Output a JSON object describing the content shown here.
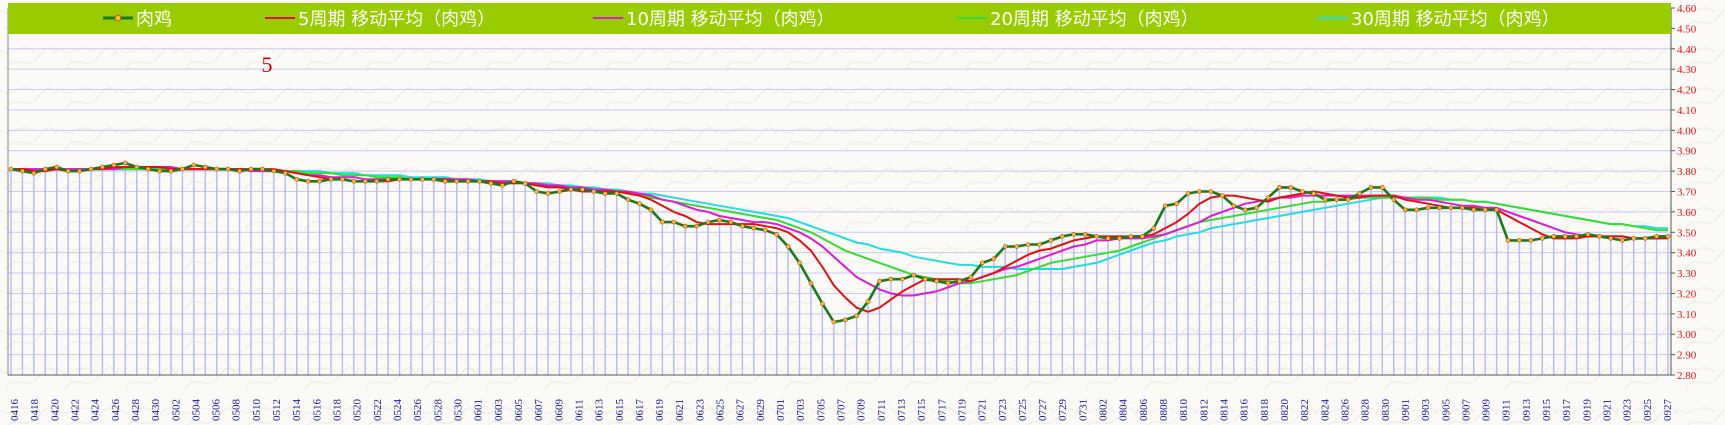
{
  "chart_data": {
    "type": "line",
    "title": "",
    "xlabel": "",
    "ylabel": "",
    "annotation": "5",
    "ylim": [
      2.8,
      4.6
    ],
    "yticks": [
      "2.80",
      "2.90",
      "3.00",
      "3.10",
      "3.20",
      "3.30",
      "3.40",
      "3.50",
      "3.60",
      "3.70",
      "3.80",
      "3.90",
      "4.00",
      "4.10",
      "4.20",
      "4.30",
      "4.40",
      "4.50",
      "4.60"
    ],
    "x_labels": [
      "0416",
      "0418",
      "0420",
      "0422",
      "0424",
      "0426",
      "0428",
      "0430",
      "0502",
      "0504",
      "0506",
      "0508",
      "0510",
      "0512",
      "0514",
      "0516",
      "0518",
      "0520",
      "0522",
      "0524",
      "0526",
      "0528",
      "0530",
      "0601",
      "0603",
      "0605",
      "0607",
      "0609",
      "0611",
      "0613",
      "0615",
      "0617",
      "0619",
      "0621",
      "0623",
      "0625",
      "0627",
      "0629",
      "0701",
      "0703",
      "0705",
      "0707",
      "0709",
      "0711",
      "0713",
      "0715",
      "0717",
      "0719",
      "0721",
      "0723",
      "0725",
      "0727",
      "0729",
      "0731",
      "0802",
      "0804",
      "0806",
      "0808",
      "0810",
      "0812",
      "0814",
      "0816",
      "0818",
      "0820",
      "0822",
      "0824",
      "0826",
      "0828",
      "0830",
      "0901",
      "0903",
      "0905",
      "0907",
      "0909",
      "0911",
      "0913",
      "0915",
      "0917",
      "0919",
      "0921",
      "0923",
      "0925",
      "0927"
    ],
    "grid": true,
    "legend_position": "top",
    "series": [
      {
        "name": "肉鸡",
        "color": "#1a7a1a",
        "marker": true,
        "values": [
          3.81,
          3.8,
          3.79,
          3.81,
          3.82,
          3.8,
          3.8,
          3.81,
          3.82,
          3.83,
          3.84,
          3.82,
          3.81,
          3.8,
          3.8,
          3.81,
          3.83,
          3.82,
          3.81,
          3.81,
          3.8,
          3.81,
          3.81,
          3.8,
          3.79,
          3.76,
          3.75,
          3.75,
          3.76,
          3.76,
          3.75,
          3.75,
          3.75,
          3.76,
          3.76,
          3.76,
          3.76,
          3.76,
          3.75,
          3.75,
          3.75,
          3.75,
          3.74,
          3.73,
          3.75,
          3.74,
          3.7,
          3.69,
          3.7,
          3.71,
          3.71,
          3.7,
          3.69,
          3.69,
          3.66,
          3.64,
          3.61,
          3.55,
          3.55,
          3.53,
          3.53,
          3.55,
          3.56,
          3.55,
          3.53,
          3.52,
          3.51,
          3.49,
          3.43,
          3.35,
          3.25,
          3.15,
          3.06,
          3.07,
          3.09,
          3.16,
          3.26,
          3.27,
          3.27,
          3.29,
          3.27,
          3.26,
          3.25,
          3.26,
          3.28,
          3.35,
          3.37,
          3.43,
          3.43,
          3.44,
          3.44,
          3.46,
          3.48,
          3.49,
          3.49,
          3.48,
          3.47,
          3.47,
          3.48,
          3.48,
          3.52,
          3.63,
          3.64,
          3.69,
          3.7,
          3.7,
          3.68,
          3.63,
          3.61,
          3.62,
          3.67,
          3.72,
          3.72,
          3.7,
          3.69,
          3.66,
          3.66,
          3.66,
          3.69,
          3.72,
          3.72,
          3.66,
          3.61,
          3.61,
          3.62,
          3.62,
          3.62,
          3.62,
          3.61,
          3.61,
          3.61,
          3.46,
          3.46,
          3.46,
          3.47,
          3.48,
          3.48,
          3.48,
          3.49,
          3.48,
          3.47,
          3.46,
          3.47,
          3.47,
          3.48,
          3.48
        ]
      },
      {
        "name": "5周期 移动平均（肉鸡）",
        "color": "#e01010",
        "values": [
          3.81,
          3.81,
          3.8,
          3.8,
          3.81,
          3.8,
          3.8,
          3.81,
          3.81,
          3.82,
          3.82,
          3.82,
          3.82,
          3.82,
          3.81,
          3.81,
          3.81,
          3.81,
          3.81,
          3.81,
          3.81,
          3.81,
          3.81,
          3.81,
          3.8,
          3.79,
          3.78,
          3.77,
          3.76,
          3.76,
          3.75,
          3.75,
          3.75,
          3.75,
          3.76,
          3.76,
          3.76,
          3.76,
          3.76,
          3.75,
          3.75,
          3.75,
          3.75,
          3.74,
          3.74,
          3.74,
          3.73,
          3.72,
          3.72,
          3.71,
          3.7,
          3.7,
          3.7,
          3.7,
          3.69,
          3.68,
          3.66,
          3.63,
          3.6,
          3.58,
          3.55,
          3.54,
          3.54,
          3.54,
          3.54,
          3.54,
          3.53,
          3.52,
          3.5,
          3.46,
          3.41,
          3.33,
          3.24,
          3.18,
          3.13,
          3.11,
          3.13,
          3.17,
          3.21,
          3.24,
          3.27,
          3.27,
          3.27,
          3.27,
          3.26,
          3.28,
          3.3,
          3.33,
          3.36,
          3.39,
          3.41,
          3.42,
          3.44,
          3.46,
          3.47,
          3.48,
          3.48,
          3.48,
          3.48,
          3.48,
          3.49,
          3.52,
          3.55,
          3.59,
          3.64,
          3.67,
          3.68,
          3.68,
          3.67,
          3.66,
          3.65,
          3.67,
          3.68,
          3.69,
          3.7,
          3.69,
          3.68,
          3.67,
          3.67,
          3.68,
          3.68,
          3.68,
          3.66,
          3.65,
          3.64,
          3.63,
          3.62,
          3.62,
          3.62,
          3.61,
          3.61,
          3.58,
          3.55,
          3.52,
          3.49,
          3.47,
          3.47,
          3.47,
          3.48,
          3.48,
          3.48,
          3.48,
          3.47,
          3.47,
          3.47,
          3.47
        ]
      },
      {
        "name": "10周期 移动平均（肉鸡）",
        "color": "#d81ecf",
        "values": [
          3.81,
          3.81,
          3.81,
          3.81,
          3.81,
          3.81,
          3.81,
          3.81,
          3.81,
          3.81,
          3.82,
          3.82,
          3.82,
          3.82,
          3.82,
          3.81,
          3.81,
          3.81,
          3.81,
          3.81,
          3.81,
          3.8,
          3.8,
          3.8,
          3.8,
          3.79,
          3.78,
          3.78,
          3.77,
          3.77,
          3.77,
          3.76,
          3.76,
          3.76,
          3.76,
          3.76,
          3.76,
          3.76,
          3.76,
          3.76,
          3.76,
          3.75,
          3.75,
          3.75,
          3.75,
          3.74,
          3.74,
          3.73,
          3.73,
          3.72,
          3.72,
          3.71,
          3.71,
          3.7,
          3.7,
          3.69,
          3.68,
          3.66,
          3.65,
          3.63,
          3.61,
          3.6,
          3.58,
          3.57,
          3.56,
          3.55,
          3.55,
          3.54,
          3.52,
          3.5,
          3.47,
          3.43,
          3.38,
          3.33,
          3.28,
          3.25,
          3.22,
          3.2,
          3.19,
          3.19,
          3.2,
          3.21,
          3.23,
          3.25,
          3.26,
          3.28,
          3.3,
          3.32,
          3.33,
          3.35,
          3.37,
          3.39,
          3.41,
          3.43,
          3.44,
          3.46,
          3.46,
          3.47,
          3.47,
          3.47,
          3.48,
          3.49,
          3.51,
          3.53,
          3.55,
          3.58,
          3.6,
          3.62,
          3.64,
          3.65,
          3.66,
          3.67,
          3.67,
          3.68,
          3.68,
          3.68,
          3.68,
          3.68,
          3.68,
          3.68,
          3.68,
          3.68,
          3.67,
          3.66,
          3.66,
          3.65,
          3.64,
          3.63,
          3.63,
          3.62,
          3.62,
          3.6,
          3.58,
          3.56,
          3.54,
          3.52,
          3.5,
          3.49,
          3.48,
          3.48,
          3.48,
          3.48,
          3.47,
          3.47,
          3.47,
          3.48
        ]
      },
      {
        "name": "20周期 移动平均（肉鸡）",
        "color": "#33dd33",
        "values": [
          3.81,
          3.81,
          3.81,
          3.81,
          3.81,
          3.81,
          3.81,
          3.81,
          3.81,
          3.81,
          3.81,
          3.81,
          3.81,
          3.81,
          3.81,
          3.81,
          3.81,
          3.81,
          3.81,
          3.81,
          3.81,
          3.81,
          3.8,
          3.8,
          3.8,
          3.8,
          3.79,
          3.79,
          3.79,
          3.78,
          3.78,
          3.78,
          3.77,
          3.77,
          3.77,
          3.76,
          3.76,
          3.76,
          3.76,
          3.76,
          3.75,
          3.75,
          3.75,
          3.74,
          3.74,
          3.74,
          3.73,
          3.73,
          3.72,
          3.72,
          3.71,
          3.71,
          3.7,
          3.7,
          3.69,
          3.68,
          3.67,
          3.66,
          3.65,
          3.64,
          3.63,
          3.62,
          3.61,
          3.6,
          3.59,
          3.58,
          3.57,
          3.56,
          3.54,
          3.52,
          3.5,
          3.47,
          3.44,
          3.41,
          3.39,
          3.37,
          3.35,
          3.33,
          3.31,
          3.29,
          3.28,
          3.27,
          3.26,
          3.25,
          3.25,
          3.26,
          3.27,
          3.28,
          3.29,
          3.31,
          3.33,
          3.35,
          3.36,
          3.37,
          3.38,
          3.39,
          3.4,
          3.41,
          3.43,
          3.45,
          3.47,
          3.49,
          3.51,
          3.53,
          3.55,
          3.56,
          3.57,
          3.58,
          3.59,
          3.6,
          3.61,
          3.62,
          3.63,
          3.64,
          3.65,
          3.65,
          3.66,
          3.66,
          3.67,
          3.67,
          3.67,
          3.67,
          3.67,
          3.67,
          3.67,
          3.66,
          3.66,
          3.66,
          3.65,
          3.65,
          3.64,
          3.63,
          3.62,
          3.61,
          3.6,
          3.59,
          3.58,
          3.57,
          3.56,
          3.55,
          3.54,
          3.54,
          3.53,
          3.52,
          3.51,
          3.51
        ]
      },
      {
        "name": "30周期 移动平均（肉鸡）",
        "color": "#22dddd",
        "values": [
          3.81,
          3.81,
          3.81,
          3.81,
          3.81,
          3.81,
          3.81,
          3.81,
          3.81,
          3.81,
          3.81,
          3.81,
          3.81,
          3.81,
          3.81,
          3.81,
          3.81,
          3.81,
          3.81,
          3.81,
          3.81,
          3.81,
          3.81,
          3.8,
          3.8,
          3.8,
          3.8,
          3.8,
          3.79,
          3.79,
          3.79,
          3.78,
          3.78,
          3.78,
          3.78,
          3.77,
          3.77,
          3.77,
          3.77,
          3.76,
          3.76,
          3.76,
          3.75,
          3.75,
          3.75,
          3.74,
          3.74,
          3.74,
          3.73,
          3.73,
          3.72,
          3.72,
          3.71,
          3.71,
          3.7,
          3.69,
          3.69,
          3.68,
          3.67,
          3.66,
          3.65,
          3.64,
          3.63,
          3.62,
          3.61,
          3.6,
          3.59,
          3.58,
          3.57,
          3.55,
          3.53,
          3.51,
          3.49,
          3.47,
          3.45,
          3.44,
          3.42,
          3.41,
          3.4,
          3.38,
          3.37,
          3.36,
          3.35,
          3.34,
          3.34,
          3.33,
          3.33,
          3.33,
          3.32,
          3.32,
          3.32,
          3.32,
          3.32,
          3.33,
          3.34,
          3.35,
          3.37,
          3.39,
          3.41,
          3.43,
          3.45,
          3.46,
          3.48,
          3.49,
          3.5,
          3.52,
          3.53,
          3.54,
          3.55,
          3.56,
          3.57,
          3.58,
          3.59,
          3.6,
          3.61,
          3.62,
          3.63,
          3.64,
          3.65,
          3.66,
          3.67,
          3.67,
          3.67,
          3.67,
          3.67,
          3.67,
          3.66,
          3.66,
          3.65,
          3.65,
          3.64,
          3.63,
          3.62,
          3.61,
          3.6,
          3.59,
          3.58,
          3.57,
          3.56,
          3.55,
          3.54,
          3.54,
          3.53,
          3.53,
          3.52,
          3.52
        ]
      }
    ]
  }
}
